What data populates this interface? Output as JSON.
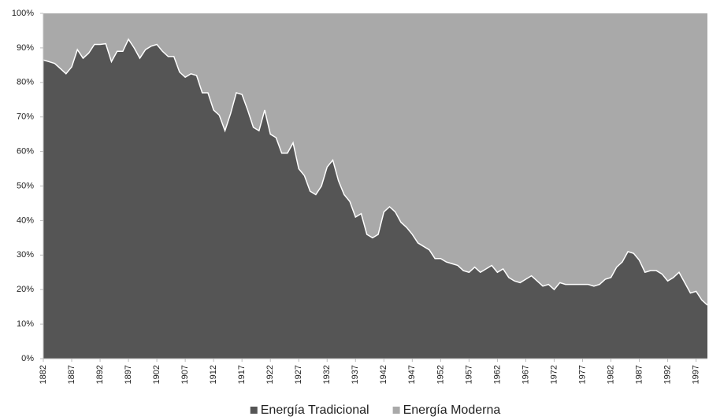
{
  "chart_data": {
    "type": "stacked_area",
    "x": [
      1882,
      1883,
      1884,
      1885,
      1886,
      1887,
      1888,
      1889,
      1890,
      1891,
      1892,
      1893,
      1894,
      1895,
      1896,
      1897,
      1898,
      1899,
      1900,
      1901,
      1902,
      1903,
      1904,
      1905,
      1906,
      1907,
      1908,
      1909,
      1910,
      1911,
      1912,
      1913,
      1914,
      1915,
      1916,
      1917,
      1918,
      1919,
      1920,
      1921,
      1922,
      1923,
      1924,
      1925,
      1926,
      1927,
      1928,
      1929,
      1930,
      1931,
      1932,
      1933,
      1934,
      1935,
      1936,
      1937,
      1938,
      1939,
      1940,
      1941,
      1942,
      1943,
      1944,
      1945,
      1946,
      1947,
      1948,
      1949,
      1950,
      1951,
      1952,
      1953,
      1954,
      1955,
      1956,
      1957,
      1958,
      1959,
      1960,
      1961,
      1962,
      1963,
      1964,
      1965,
      1966,
      1967,
      1968,
      1969,
      1970,
      1971,
      1972,
      1973,
      1974,
      1975,
      1976,
      1977,
      1978,
      1979,
      1980,
      1981,
      1982,
      1983,
      1984,
      1985,
      1986,
      1987,
      1988,
      1989,
      1990,
      1991,
      1992,
      1993,
      1994,
      1995,
      1996,
      1997,
      1998,
      1999
    ],
    "series": [
      {
        "name": "Energía Tradicional",
        "color": "#555555",
        "values": [
          86.5,
          86,
          85.5,
          84,
          82.5,
          84.5,
          89.5,
          87,
          88.5,
          91,
          91,
          91.2,
          86,
          89,
          89,
          92.5,
          90,
          87,
          89.5,
          90.5,
          91,
          89,
          87.5,
          87.5,
          83,
          81.5,
          82.5,
          82,
          77,
          77,
          72,
          70.5,
          66,
          71,
          77,
          76.5,
          72,
          67,
          66,
          72,
          65,
          64,
          59.5,
          59.5,
          62.5,
          55,
          53,
          48.5,
          47.5,
          50,
          55.5,
          57.5,
          51.5,
          47.5,
          45.5,
          41,
          42,
          36,
          35,
          36,
          42.5,
          44,
          42.5,
          39.5,
          38,
          36,
          33.5,
          32.5,
          31.5,
          29,
          29,
          28,
          27.5,
          27,
          25.5,
          25,
          26.5,
          25,
          26,
          27,
          25,
          26,
          23.5,
          22.5,
          22,
          23,
          24,
          22.5,
          21,
          21.5,
          20,
          22,
          21.5,
          21.5,
          21.5,
          21.5,
          21.5,
          21,
          21.5,
          23,
          23.5,
          26.5,
          28,
          31,
          30.5,
          28.5,
          25,
          25.5,
          25.5,
          24.5,
          22.5,
          23.5,
          25,
          22,
          19,
          19.5,
          17,
          15.5
        ]
      },
      {
        "name": "Energía Moderna",
        "color": "#a9a9a9",
        "values": [
          13.5,
          14,
          14.5,
          16,
          17.5,
          15.5,
          10.5,
          13,
          11.5,
          9,
          9,
          8.8,
          14,
          11,
          11,
          7.5,
          10,
          13,
          10.5,
          9.5,
          9,
          11,
          12.5,
          12.5,
          17,
          18.5,
          17.5,
          18,
          23,
          23,
          28,
          29.5,
          34,
          29,
          23,
          23.5,
          28,
          33,
          34,
          28,
          35,
          36,
          40.5,
          40.5,
          37.5,
          45,
          47,
          51.5,
          52.5,
          50,
          44.5,
          42.5,
          48.5,
          52.5,
          54.5,
          59,
          58,
          64,
          65,
          64,
          57.5,
          56,
          57.5,
          60.5,
          62,
          64,
          66.5,
          67.5,
          68.5,
          71,
          71,
          72,
          72.5,
          73,
          74.5,
          75,
          73.5,
          75,
          74,
          73,
          75,
          74,
          76.5,
          77.5,
          78,
          77,
          76,
          77.5,
          79,
          78.5,
          80,
          78,
          78.5,
          78.5,
          78.5,
          78.5,
          78.5,
          79,
          78.5,
          77,
          76.5,
          73.5,
          72,
          69,
          69.5,
          71.5,
          75,
          74.5,
          74.5,
          75.5,
          77.5,
          76.5,
          75,
          78,
          81,
          80.5,
          83,
          84.5
        ]
      }
    ],
    "xlim": [
      1882,
      1999
    ],
    "xticks": [
      1882,
      1887,
      1892,
      1897,
      1902,
      1907,
      1912,
      1917,
      1922,
      1927,
      1932,
      1937,
      1942,
      1947,
      1952,
      1957,
      1962,
      1967,
      1972,
      1977,
      1982,
      1987,
      1992,
      1997
    ],
    "ylim": [
      0,
      100
    ],
    "yticks": [
      {
        "value": 0,
        "label": "0%"
      },
      {
        "value": 10,
        "label": "10%"
      },
      {
        "value": 20,
        "label": "20%"
      },
      {
        "value": 30,
        "label": "30%"
      },
      {
        "value": 40,
        "label": "40%"
      },
      {
        "value": 50,
        "label": "50%"
      },
      {
        "value": 60,
        "label": "60%"
      },
      {
        "value": 70,
        "label": "70%"
      },
      {
        "value": 80,
        "label": "80%"
      },
      {
        "value": 90,
        "label": "90%"
      },
      {
        "value": 100,
        "label": "100%"
      }
    ],
    "legend": "bottom"
  }
}
